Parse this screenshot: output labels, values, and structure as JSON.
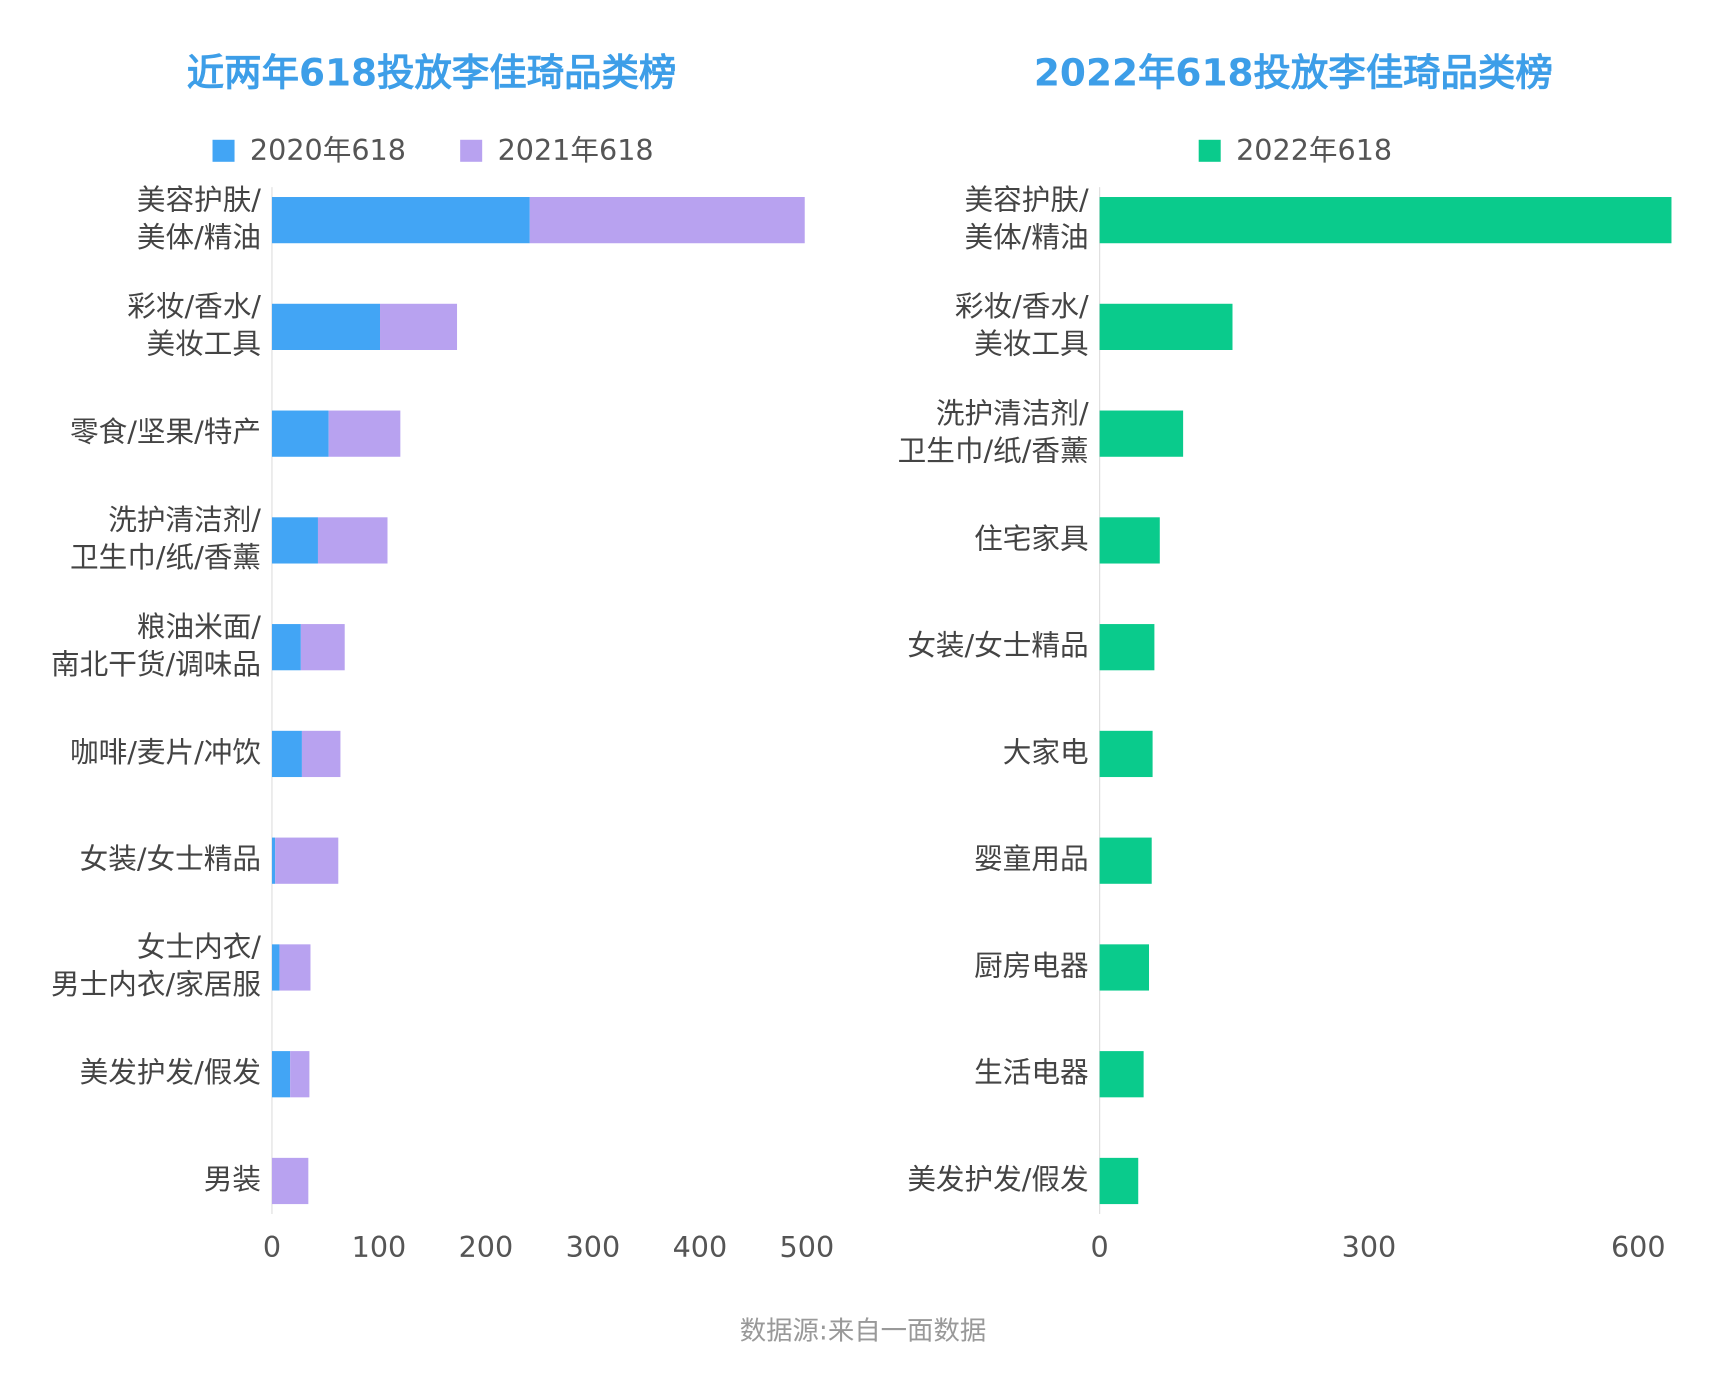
{
  "chart_data": [
    {
      "type": "bar",
      "orientation": "horizontal",
      "stacked": true,
      "title": "近两年618投放李佳琦品类榜",
      "categories": [
        "美容护肤/\n美体/精油",
        "彩妆/香水/\n美妆工具",
        "零食/坚果/特产",
        "洗护清洁剂/\n卫生巾/纸/香薰",
        "粮油米面/\n南北干货/调味品",
        "咖啡/麦片/冲饮",
        "女装/女士精品",
        "女士内衣/\n男士内衣/家居服",
        "美发护发/假发",
        "男装"
      ],
      "series": [
        {
          "name": "2020年618",
          "color": "#42a5f5",
          "values": [
            241,
            101,
            53,
            43,
            27,
            28,
            3,
            7,
            17,
            0
          ]
        },
        {
          "name": "2021年618",
          "color": "#b8a2f0",
          "values": [
            257,
            72,
            67,
            65,
            41,
            36,
            59,
            29,
            18,
            34
          ]
        }
      ],
      "xlim": [
        0,
        500
      ],
      "xticks": [
        0,
        100,
        200,
        300,
        400,
        500
      ],
      "legend": "top"
    },
    {
      "type": "bar",
      "orientation": "horizontal",
      "stacked": false,
      "title": "2022年618投放李佳琦品类榜",
      "categories": [
        "美容护肤/\n美体/精油",
        "彩妆/香水/\n美妆工具",
        "洗护清洁剂/\n卫生巾/纸/香薰",
        "住宅家具",
        "女装/女士精品",
        "大家电",
        "婴童用品",
        "厨房电器",
        "生活电器",
        "美发护发/假发"
      ],
      "series": [
        {
          "name": "2022年618",
          "color": "#0acb8c",
          "values": [
            637,
            148,
            93,
            67,
            61,
            59,
            58,
            55,
            49,
            43
          ]
        }
      ],
      "xlim": [
        0,
        640
      ],
      "xticks": [
        0,
        300,
        600
      ],
      "legend": "top"
    }
  ],
  "source": "数据源:来自一面数据"
}
